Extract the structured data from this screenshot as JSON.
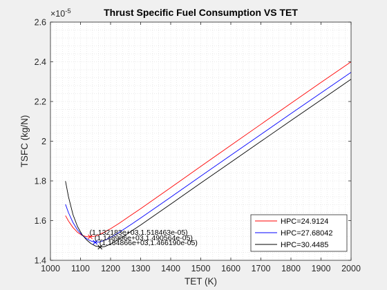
{
  "chart_data": {
    "type": "line",
    "title": "Thrust Specific Fuel Consumption VS TET",
    "xlabel": "TET (K)",
    "ylabel": "TSFC (kg/N)",
    "y_exponent_label": "×10",
    "y_exponent_power": "-5",
    "xlim": [
      1000,
      2000
    ],
    "ylim": [
      1.4,
      2.6
    ],
    "x_ticks": [
      "1000",
      "1100",
      "1200",
      "1300",
      "1400",
      "1500",
      "1600",
      "1700",
      "1800",
      "1900",
      "2000"
    ],
    "y_ticks": [
      "1.4",
      "1.6",
      "1.8",
      "2",
      "2.2",
      "2.4",
      "2.6"
    ],
    "grid": "minor-dotted",
    "legend_position": "bottom-right",
    "series": [
      {
        "name": "HPC=24.9124",
        "color": "#ff0000",
        "x": [
          1050,
          1060,
          1075,
          1090,
          1105,
          1120,
          1132.183,
          1145,
          1160,
          1180,
          1200,
          1230,
          1260,
          1300,
          1400,
          1500,
          1600,
          1700,
          1800,
          1900,
          2000
        ],
        "y": [
          1.625,
          1.598,
          1.565,
          1.541,
          1.526,
          1.519,
          1.5185,
          1.521,
          1.528,
          1.542,
          1.559,
          1.588,
          1.619,
          1.66,
          1.766,
          1.873,
          1.979,
          2.085,
          2.191,
          2.296,
          2.4
        ],
        "marker": {
          "x": 1132.183,
          "y": 1.518463,
          "symbol": "x"
        }
      },
      {
        "name": "HPC=27.68042",
        "color": "#0000ff",
        "x": [
          1050,
          1060,
          1075,
          1090,
          1105,
          1120,
          1135,
          1148.906,
          1165,
          1185,
          1210,
          1240,
          1270,
          1300,
          1400,
          1500,
          1600,
          1700,
          1800,
          1900,
          2000
        ],
        "y": [
          1.682,
          1.64,
          1.59,
          1.553,
          1.527,
          1.509,
          1.497,
          1.4906,
          1.493,
          1.504,
          1.524,
          1.552,
          1.582,
          1.613,
          1.718,
          1.824,
          1.929,
          2.034,
          2.139,
          2.243,
          2.347
        ],
        "marker": {
          "x": 1148.906,
          "y": 1.490564,
          "symbol": "x"
        }
      },
      {
        "name": "HPC=30.4485",
        "color": "#000000",
        "x": [
          1050,
          1060,
          1075,
          1090,
          1105,
          1120,
          1135,
          1150,
          1164.866,
          1180,
          1200,
          1230,
          1260,
          1300,
          1400,
          1500,
          1600,
          1700,
          1800,
          1900,
          2000
        ],
        "y": [
          1.799,
          1.72,
          1.63,
          1.57,
          1.53,
          1.503,
          1.484,
          1.472,
          1.4662,
          1.469,
          1.482,
          1.508,
          1.538,
          1.578,
          1.683,
          1.789,
          1.894,
          1.999,
          2.104,
          2.208,
          2.312
        ],
        "marker": {
          "x": 1164.866,
          "y": 1.46619,
          "symbol": "x"
        }
      }
    ],
    "annotations": [
      {
        "text": "(1.132183e+03,1.518463e-05)",
        "x": 1132.183,
        "y": 1.518463
      },
      {
        "text": "(1.148906e+03,1.490564e-05)",
        "x": 1148.906,
        "y": 1.490564
      },
      {
        "text": "(1.164866e+03,1.466190e-05)",
        "x": 1164.866,
        "y": 1.46619
      }
    ]
  }
}
